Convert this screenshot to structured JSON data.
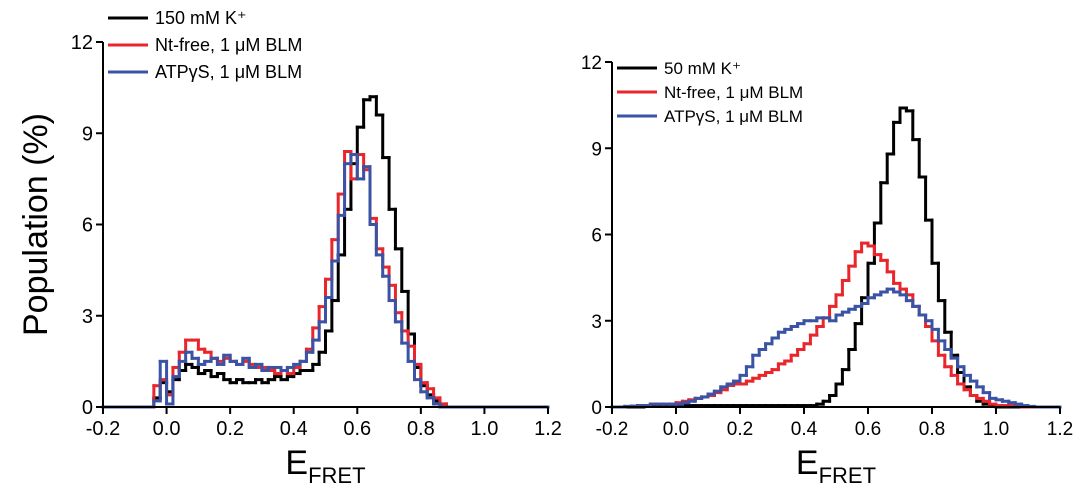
{
  "chart_data": [
    {
      "type": "histogram",
      "ylabel": "Population (%)",
      "xlabel": "E",
      "xlabel_subscript": "FRET",
      "legend": "upper left",
      "bins": [
        -0.2,
        -0.18,
        -0.16,
        -0.14,
        -0.12,
        -0.1,
        -0.08,
        -0.06,
        -0.04,
        -0.02,
        0,
        0.02,
        0.04,
        0.06,
        0.08,
        0.1,
        0.12,
        0.14,
        0.16,
        0.18,
        0.2,
        0.22,
        0.24,
        0.26,
        0.28,
        0.3,
        0.32,
        0.34,
        0.36,
        0.38,
        0.4,
        0.42,
        0.44,
        0.46,
        0.48,
        0.5,
        0.52,
        0.54,
        0.56,
        0.58,
        0.6,
        0.62,
        0.64,
        0.66,
        0.68,
        0.7,
        0.72,
        0.74,
        0.76,
        0.78,
        0.8,
        0.82,
        0.84,
        0.86,
        0.88,
        0.9,
        0.92,
        0.94,
        0.96,
        0.98,
        1,
        1.02,
        1.04,
        1.06,
        1.08,
        1.1,
        1.12,
        1.14,
        1.16,
        1.18,
        1.2
      ],
      "series": [
        {
          "name": "150 mM K⁺",
          "color": "#000000",
          "values": [
            0,
            0,
            0,
            0,
            0,
            0,
            0,
            0,
            0.3,
            0.8,
            0.5,
            0.9,
            1.2,
            1.4,
            1.3,
            1.1,
            1.2,
            1.0,
            1.1,
            0.9,
            0.8,
            0.9,
            0.8,
            0.8,
            0.9,
            0.8,
            0.9,
            1.0,
            0.9,
            1.0,
            1.1,
            1.2,
            1.2,
            1.4,
            1.8,
            2.5,
            3.5,
            5.0,
            6.5,
            8.0,
            9.2,
            10.1,
            10.2,
            9.6,
            8.2,
            6.5,
            5.2,
            3.8,
            2.4,
            1.3,
            0.7,
            0.4,
            0.2,
            0.1,
            0,
            0,
            0,
            0,
            0,
            0,
            0,
            0,
            0,
            0,
            0,
            0,
            0,
            0,
            0,
            0
          ]
        },
        {
          "name": "Nt-free, 1 μM BLM",
          "color": "#e8262b",
          "values": [
            0,
            0,
            0,
            0,
            0,
            0,
            0,
            0,
            0.7,
            0.9,
            0.4,
            1.3,
            1.8,
            2.2,
            2.2,
            1.9,
            1.8,
            1.6,
            1.5,
            1.6,
            1.5,
            1.4,
            1.5,
            1.4,
            1.3,
            1.3,
            1.2,
            1.1,
            1.2,
            1.1,
            1.3,
            1.5,
            1.9,
            2.6,
            3.3,
            4.2,
            5.5,
            7.0,
            8.4,
            7.5,
            8.3,
            7.8,
            6.2,
            5.2,
            4.6,
            4.0,
            3.1,
            2.5,
            2.0,
            1.4,
            0.8,
            0.6,
            0.3,
            0.1,
            0,
            0,
            0,
            0,
            0,
            0,
            0,
            0,
            0,
            0,
            0,
            0,
            0,
            0,
            0,
            0
          ]
        },
        {
          "name": "ATPγS, 1 μM BLM",
          "color": "#3a53a4",
          "values": [
            0,
            0,
            0,
            0,
            0,
            0,
            0,
            0,
            0.2,
            1.5,
            0.1,
            1.0,
            1.5,
            1.8,
            1.6,
            1.4,
            1.5,
            1.6,
            1.4,
            1.7,
            1.5,
            1.4,
            1.6,
            1.3,
            1.4,
            1.2,
            1.3,
            1.3,
            1.2,
            1.3,
            1.4,
            1.5,
            1.8,
            2.2,
            2.8,
            3.6,
            4.8,
            6.3,
            8.0,
            8.3,
            7.5,
            7.9,
            6.0,
            5.0,
            4.3,
            3.5,
            2.8,
            2.1,
            1.5,
            0.9,
            0.5,
            0.3,
            0.1,
            0,
            0,
            0,
            0,
            0,
            0,
            0,
            0,
            0,
            0,
            0,
            0,
            0,
            0,
            0,
            0,
            0
          ]
        }
      ],
      "xlim": [
        -0.2,
        1.2
      ],
      "xticks": [
        -0.2,
        {
          "value": 0,
          "label": "0.0"
        },
        0.2,
        0.4,
        0.6,
        0.8,
        {
          "value": 1,
          "label": "1.0"
        },
        1.2
      ],
      "ylim": [
        0,
        12
      ],
      "yticks": [
        0,
        3,
        6,
        9,
        12
      ]
    },
    {
      "type": "histogram",
      "xlabel": "E",
      "xlabel_subscript": "FRET",
      "legend": "upper left",
      "bins": [
        -0.2,
        -0.18,
        -0.16,
        -0.14,
        -0.12,
        -0.1,
        -0.08,
        -0.06,
        -0.04,
        -0.02,
        0,
        0.02,
        0.04,
        0.06,
        0.08,
        0.1,
        0.12,
        0.14,
        0.16,
        0.18,
        0.2,
        0.22,
        0.24,
        0.26,
        0.28,
        0.3,
        0.32,
        0.34,
        0.36,
        0.38,
        0.4,
        0.42,
        0.44,
        0.46,
        0.48,
        0.5,
        0.52,
        0.54,
        0.56,
        0.58,
        0.6,
        0.62,
        0.64,
        0.66,
        0.68,
        0.7,
        0.72,
        0.74,
        0.76,
        0.78,
        0.8,
        0.82,
        0.84,
        0.86,
        0.88,
        0.9,
        0.92,
        0.94,
        0.96,
        0.98,
        1,
        1.02,
        1.04,
        1.06,
        1.08,
        1.1,
        1.12,
        1.14,
        1.16,
        1.18,
        1.2
      ],
      "series": [
        {
          "name": "50 mM K⁺",
          "color": "#000000",
          "values": [
            0,
            0,
            0,
            0,
            0,
            0.05,
            0.05,
            0.05,
            0.05,
            0.05,
            0.05,
            0.05,
            0.05,
            0.05,
            0.05,
            0.05,
            0.05,
            0.05,
            0.05,
            0.05,
            0.05,
            0.05,
            0.05,
            0.05,
            0.05,
            0.05,
            0.05,
            0.05,
            0.05,
            0.05,
            0.05,
            0.05,
            0.1,
            0.2,
            0.4,
            0.8,
            1.3,
            2.0,
            2.9,
            3.8,
            5.0,
            6.4,
            7.8,
            8.8,
            9.9,
            10.4,
            10.3,
            9.3,
            8.0,
            6.5,
            5.0,
            3.7,
            2.6,
            1.8,
            1.2,
            0.7,
            0.4,
            0.2,
            0.1,
            0.05,
            0,
            0,
            0,
            0,
            0,
            0,
            0,
            0,
            0,
            0
          ]
        },
        {
          "name": "Nt-free, 1 μM BLM",
          "color": "#e8262b",
          "values": [
            0,
            0,
            0.02,
            0.03,
            0.05,
            0.05,
            0.1,
            0.1,
            0.1,
            0.1,
            0.15,
            0.2,
            0.25,
            0.3,
            0.35,
            0.4,
            0.5,
            0.6,
            0.75,
            0.8,
            0.8,
            0.9,
            1.0,
            1.1,
            1.2,
            1.3,
            1.5,
            1.6,
            1.8,
            2.0,
            2.2,
            2.5,
            2.8,
            3.1,
            3.5,
            3.9,
            4.4,
            4.9,
            5.4,
            5.7,
            5.6,
            5.3,
            5.1,
            4.7,
            4.3,
            4.1,
            3.9,
            3.5,
            3.2,
            2.8,
            2.3,
            1.8,
            1.4,
            1.1,
            0.8,
            0.6,
            0.4,
            0.3,
            0.2,
            0.1,
            0.05,
            0.05,
            0.05,
            0.02,
            0,
            0,
            0,
            0,
            0,
            0
          ]
        },
        {
          "name": "ATPγS, 1 μM BLM",
          "color": "#3a53a4",
          "values": [
            0,
            0,
            0.02,
            0.03,
            0.05,
            0.05,
            0.1,
            0.1,
            0.1,
            0.1,
            0.1,
            0.15,
            0.2,
            0.3,
            0.35,
            0.45,
            0.55,
            0.7,
            0.8,
            0.9,
            1.1,
            1.4,
            1.8,
            2.0,
            2.2,
            2.4,
            2.6,
            2.7,
            2.8,
            2.9,
            3.0,
            3.0,
            3.1,
            3.1,
            3.0,
            3.2,
            3.3,
            3.4,
            3.5,
            3.6,
            3.8,
            3.9,
            4.0,
            4.1,
            4.0,
            3.9,
            3.7,
            3.5,
            3.2,
            3.0,
            2.7,
            2.3,
            2.0,
            1.7,
            1.4,
            1.1,
            0.9,
            0.7,
            0.5,
            0.3,
            0.25,
            0.2,
            0.15,
            0.1,
            0.05,
            0.02,
            0,
            0,
            0,
            0
          ]
        }
      ],
      "xlim": [
        -0.2,
        1.2
      ],
      "xticks": [
        -0.2,
        {
          "value": 0,
          "label": "0.0"
        },
        0.2,
        0.4,
        0.6,
        0.8,
        {
          "value": 1,
          "label": "1.0"
        },
        1.2
      ],
      "ylim": [
        0,
        12
      ],
      "yticks": [
        0,
        3,
        6,
        9,
        12
      ]
    }
  ]
}
